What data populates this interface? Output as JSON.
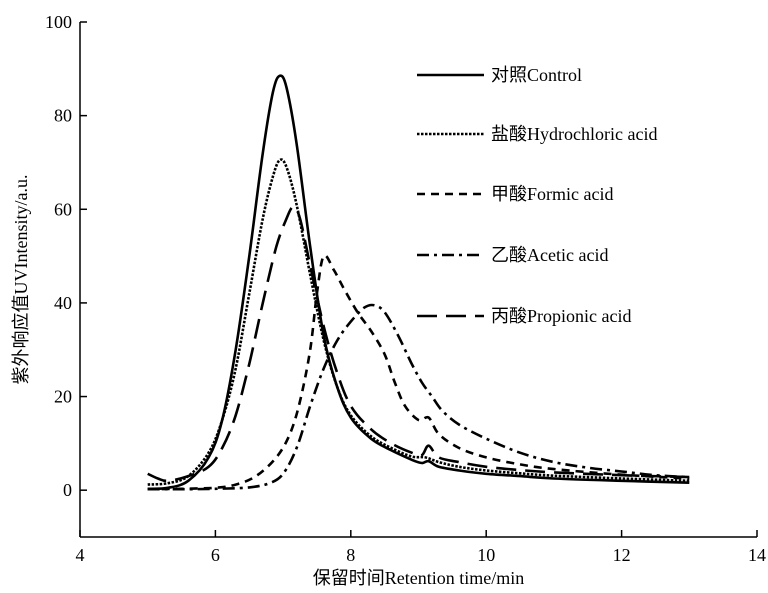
{
  "chart_data": {
    "type": "line",
    "title": "",
    "xlabel": "保留时间Retention time/min",
    "ylabel": "紫外响应值UVIntensity/a.u.",
    "xlim": [
      4,
      14
    ],
    "ylim": [
      -10,
      100
    ],
    "xticks": [
      4,
      6,
      8,
      10,
      12,
      14
    ],
    "yticks": [
      0,
      20,
      40,
      60,
      80,
      100
    ],
    "grid": false,
    "legend_position": "top-right",
    "series": [
      {
        "name": "对照Control",
        "dash": "solid",
        "points": [
          [
            5.0,
            0.3
          ],
          [
            5.3,
            0.5
          ],
          [
            5.6,
            2.0
          ],
          [
            5.9,
            7.0
          ],
          [
            6.1,
            15.0
          ],
          [
            6.3,
            30.0
          ],
          [
            6.5,
            50.0
          ],
          [
            6.7,
            72.0
          ],
          [
            6.85,
            85.0
          ],
          [
            6.95,
            88.5
          ],
          [
            7.05,
            86.0
          ],
          [
            7.2,
            74.0
          ],
          [
            7.4,
            52.0
          ],
          [
            7.6,
            33.0
          ],
          [
            7.8,
            22.0
          ],
          [
            8.0,
            15.5
          ],
          [
            8.3,
            11.0
          ],
          [
            8.6,
            8.5
          ],
          [
            8.9,
            6.5
          ],
          [
            9.05,
            5.8
          ],
          [
            9.15,
            6.2
          ],
          [
            9.3,
            5.0
          ],
          [
            9.6,
            4.2
          ],
          [
            10.0,
            3.5
          ],
          [
            10.5,
            3.0
          ],
          [
            11.0,
            2.5
          ],
          [
            12.0,
            2.0
          ],
          [
            13.0,
            1.6
          ]
        ]
      },
      {
        "name": "盐酸Hydrochloric acid",
        "dash": "dotted",
        "points": [
          [
            5.0,
            1.2
          ],
          [
            5.3,
            1.5
          ],
          [
            5.6,
            3.0
          ],
          [
            5.9,
            8.0
          ],
          [
            6.1,
            15.0
          ],
          [
            6.3,
            26.0
          ],
          [
            6.5,
            42.0
          ],
          [
            6.7,
            58.0
          ],
          [
            6.85,
            67.0
          ],
          [
            6.95,
            70.5
          ],
          [
            7.05,
            69.0
          ],
          [
            7.2,
            61.0
          ],
          [
            7.4,
            46.0
          ],
          [
            7.6,
            32.0
          ],
          [
            7.8,
            22.0
          ],
          [
            8.0,
            16.0
          ],
          [
            8.3,
            11.5
          ],
          [
            8.6,
            9.0
          ],
          [
            8.9,
            7.2
          ],
          [
            9.1,
            7.0
          ],
          [
            9.3,
            6.0
          ],
          [
            9.6,
            5.0
          ],
          [
            10.0,
            4.2
          ],
          [
            10.5,
            3.6
          ],
          [
            11.0,
            3.1
          ],
          [
            12.0,
            2.5
          ],
          [
            13.0,
            2.0
          ]
        ]
      },
      {
        "name": "甲酸Formic acid",
        "dash": "short-dash",
        "points": [
          [
            5.0,
            0.2
          ],
          [
            5.5,
            0.3
          ],
          [
            6.0,
            0.5
          ],
          [
            6.3,
            1.2
          ],
          [
            6.6,
            3.0
          ],
          [
            6.9,
            7.0
          ],
          [
            7.1,
            12.0
          ],
          [
            7.25,
            19.0
          ],
          [
            7.4,
            30.0
          ],
          [
            7.5,
            42.0
          ],
          [
            7.6,
            50.0
          ],
          [
            7.75,
            47.0
          ],
          [
            7.9,
            43.0
          ],
          [
            8.1,
            38.0
          ],
          [
            8.3,
            34.0
          ],
          [
            8.5,
            29.0
          ],
          [
            8.65,
            23.0
          ],
          [
            8.8,
            18.0
          ],
          [
            9.0,
            15.0
          ],
          [
            9.15,
            15.5
          ],
          [
            9.3,
            12.0
          ],
          [
            9.6,
            9.0
          ],
          [
            10.0,
            7.0
          ],
          [
            10.5,
            5.5
          ],
          [
            11.0,
            4.5
          ],
          [
            12.0,
            3.3
          ],
          [
            13.0,
            2.5
          ]
        ]
      },
      {
        "name": "乙酸Acetic acid",
        "dash": "dash-dot",
        "points": [
          [
            5.0,
            0.2
          ],
          [
            5.5,
            0.2
          ],
          [
            6.0,
            0.3
          ],
          [
            6.5,
            0.6
          ],
          [
            6.8,
            1.5
          ],
          [
            7.0,
            3.5
          ],
          [
            7.2,
            9.0
          ],
          [
            7.4,
            18.0
          ],
          [
            7.6,
            26.0
          ],
          [
            7.8,
            32.0
          ],
          [
            8.0,
            36.0
          ],
          [
            8.2,
            39.0
          ],
          [
            8.35,
            39.5
          ],
          [
            8.5,
            38.0
          ],
          [
            8.7,
            33.0
          ],
          [
            8.9,
            27.0
          ],
          [
            9.05,
            23.0
          ],
          [
            9.2,
            20.0
          ],
          [
            9.35,
            17.0
          ],
          [
            9.6,
            14.0
          ],
          [
            10.0,
            11.0
          ],
          [
            10.5,
            8.0
          ],
          [
            11.0,
            6.0
          ],
          [
            11.5,
            4.8
          ],
          [
            12.0,
            4.0
          ],
          [
            12.5,
            3.2
          ],
          [
            13.0,
            2.8
          ]
        ]
      },
      {
        "name": "丙酸Propionic acid",
        "dash": "long-dash",
        "points": [
          [
            5.0,
            3.5
          ],
          [
            5.15,
            2.5
          ],
          [
            5.3,
            2.0
          ],
          [
            5.6,
            3.0
          ],
          [
            5.9,
            5.0
          ],
          [
            6.1,
            9.0
          ],
          [
            6.3,
            16.0
          ],
          [
            6.5,
            27.0
          ],
          [
            6.7,
            40.0
          ],
          [
            6.9,
            52.0
          ],
          [
            7.05,
            58.0
          ],
          [
            7.15,
            60.5
          ],
          [
            7.25,
            58.0
          ],
          [
            7.4,
            48.0
          ],
          [
            7.6,
            35.0
          ],
          [
            7.8,
            25.0
          ],
          [
            8.0,
            18.0
          ],
          [
            8.3,
            13.0
          ],
          [
            8.6,
            10.0
          ],
          [
            8.9,
            8.0
          ],
          [
            9.05,
            7.5
          ],
          [
            9.15,
            9.5
          ],
          [
            9.3,
            7.0
          ],
          [
            9.6,
            6.0
          ],
          [
            10.0,
            5.0
          ],
          [
            10.5,
            4.3
          ],
          [
            11.0,
            3.8
          ],
          [
            12.0,
            3.2
          ],
          [
            13.0,
            2.8
          ]
        ]
      }
    ]
  }
}
